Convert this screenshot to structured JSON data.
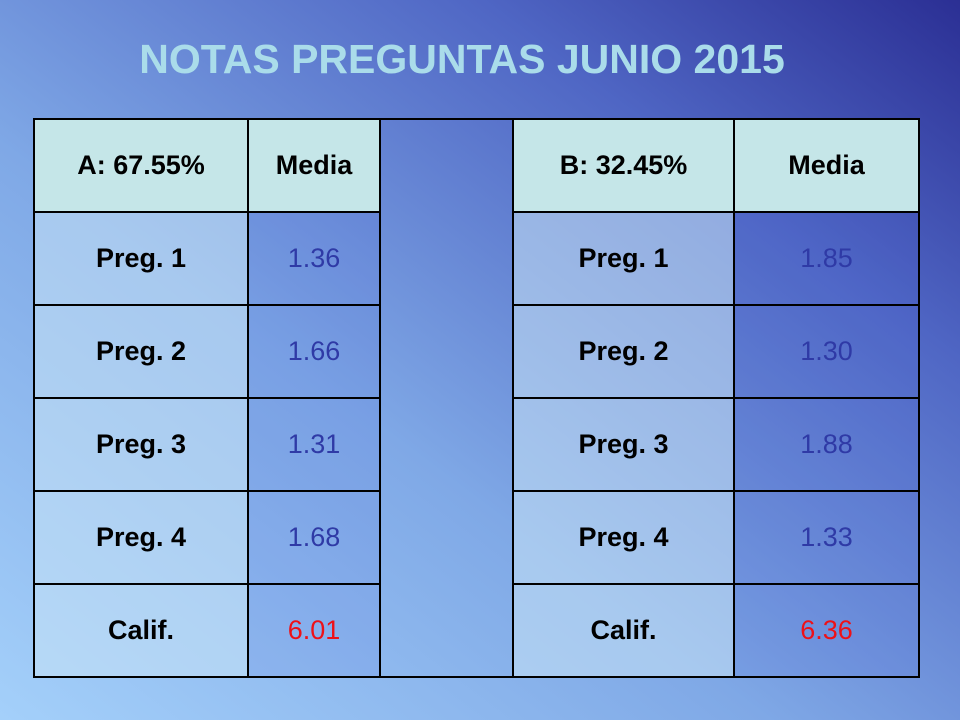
{
  "header": {
    "title": "NOTAS PREGUNTAS JUNIO 2015"
  },
  "table": {
    "header": [
      "A:  67.55%",
      "Media",
      "B:  32.45%",
      "Media"
    ],
    "rows": [
      [
        "Preg. 1",
        "1.36",
        "Preg. 1",
        "1.85"
      ],
      [
        "Preg. 2",
        "1.66",
        "Preg. 2",
        "1.30"
      ],
      [
        "Preg. 3",
        "1.31",
        "Preg. 3",
        "1.88"
      ],
      [
        "Preg. 4",
        "1.68",
        "Preg. 4",
        "1.33"
      ],
      [
        "Calif.",
        "6.01",
        "Calif.",
        "6.36"
      ]
    ]
  }
}
